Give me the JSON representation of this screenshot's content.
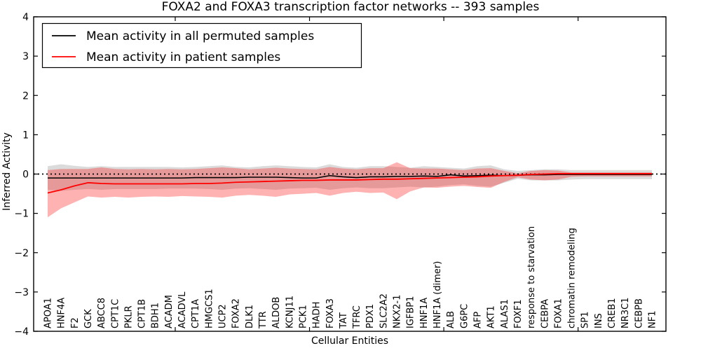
{
  "figure": {
    "title": "FOXA2 and FOXA3 transcription factor networks -- 393 samples",
    "xlabel": "Cellular Entities",
    "ylabel": "Inferred Activity"
  },
  "legend": {
    "items": [
      {
        "label": "Mean activity in all permuted samples",
        "color": "#000000"
      },
      {
        "label": "Mean activity in patient samples",
        "color": "#ff0000"
      }
    ]
  },
  "chart_data": {
    "type": "line",
    "title": "FOXA2 and FOXA3 transcription factor networks -- 393 samples",
    "xlabel": "Cellular Entities",
    "ylabel": "Inferred Activity",
    "ylim": [
      -4,
      4
    ],
    "ytick_values": [
      4,
      3,
      2,
      1,
      0,
      -1,
      -2,
      -3,
      -4
    ],
    "ytick_labels": [
      "4",
      "3",
      "2",
      "1",
      "0",
      "−1",
      "−2",
      "−3",
      "−4"
    ],
    "xtick_category_indices": [
      9,
      19,
      29,
      39
    ],
    "grid": false,
    "legend_position": "upper left",
    "zero_reference_line": 0,
    "categories": [
      "APOA1",
      "HNF4A",
      "F2",
      "GCK",
      "ABCC8",
      "CPT1C",
      "PKLR",
      "CPT1B",
      "BDH1",
      "ACADM",
      "ACADVL",
      "CPT1A",
      "HMGCS1",
      "UCP2",
      "FOXA2",
      "DLK1",
      "TTR",
      "ALDOB",
      "KCNJ11",
      "PCK1",
      "HADH",
      "FOXA3",
      "TAT",
      "TFRC",
      "PDX1",
      "SLC2A2",
      "NKX2-1",
      "IGFBP1",
      "HNF1A",
      "HNF1A (dimer)",
      "ALB",
      "G6PC",
      "AFP",
      "AKT1",
      "ALAS1",
      "FOXF1",
      "response to starvation",
      "CEBPA",
      "FOXA1",
      "chromatin remodeling",
      "SP1",
      "INS",
      "CREB1",
      "NR3C1",
      "CEBPB",
      "NF1"
    ],
    "series": [
      {
        "name": "Mean activity in all permuted samples",
        "color": "#000000",
        "line_width": 1.6,
        "band_color": "#000000",
        "band_opacity": 0.14,
        "values": [
          -0.1,
          -0.1,
          -0.1,
          -0.1,
          -0.1,
          -0.1,
          -0.1,
          -0.1,
          -0.1,
          -0.1,
          -0.1,
          -0.09,
          -0.09,
          -0.09,
          -0.09,
          -0.08,
          -0.08,
          -0.08,
          -0.09,
          -0.1,
          -0.1,
          -0.04,
          -0.07,
          -0.09,
          -0.07,
          -0.07,
          -0.06,
          -0.06,
          -0.05,
          -0.06,
          -0.02,
          -0.05,
          -0.04,
          -0.03,
          -0.04,
          -0.03,
          -0.02,
          -0.02,
          -0.01,
          -0.01,
          -0.01,
          -0.01,
          -0.01,
          -0.01,
          -0.01,
          -0.01
        ],
        "band_upper": [
          0.2,
          0.25,
          0.21,
          0.18,
          0.2,
          0.18,
          0.18,
          0.18,
          0.18,
          0.18,
          0.17,
          0.18,
          0.2,
          0.22,
          0.18,
          0.17,
          0.2,
          0.22,
          0.2,
          0.18,
          0.17,
          0.25,
          0.18,
          0.16,
          0.2,
          0.2,
          0.18,
          0.16,
          0.2,
          0.18,
          0.16,
          0.14,
          0.2,
          0.22,
          0.12,
          0.08,
          0.1,
          0.12,
          0.12,
          0.1,
          0.1,
          0.1,
          0.1,
          0.1,
          0.1,
          0.1
        ],
        "band_lower": [
          -0.4,
          -0.43,
          -0.4,
          -0.38,
          -0.4,
          -0.38,
          -0.38,
          -0.38,
          -0.38,
          -0.37,
          -0.37,
          -0.37,
          -0.38,
          -0.4,
          -0.37,
          -0.36,
          -0.38,
          -0.4,
          -0.37,
          -0.36,
          -0.35,
          -0.4,
          -0.36,
          -0.34,
          -0.36,
          -0.36,
          -0.34,
          -0.32,
          -0.34,
          -0.32,
          -0.28,
          -0.26,
          -0.3,
          -0.32,
          -0.22,
          -0.12,
          -0.16,
          -0.16,
          -0.16,
          -0.14,
          -0.13,
          -0.13,
          -0.13,
          -0.13,
          -0.13,
          -0.13
        ]
      },
      {
        "name": "Mean activity in patient samples",
        "color": "#ff0000",
        "line_width": 1.8,
        "band_color": "#ff0000",
        "band_opacity": 0.3,
        "values": [
          -0.48,
          -0.4,
          -0.3,
          -0.22,
          -0.24,
          -0.25,
          -0.25,
          -0.25,
          -0.25,
          -0.25,
          -0.25,
          -0.24,
          -0.24,
          -0.23,
          -0.21,
          -0.2,
          -0.19,
          -0.18,
          -0.17,
          -0.16,
          -0.16,
          -0.15,
          -0.15,
          -0.15,
          -0.14,
          -0.13,
          -0.13,
          -0.12,
          -0.11,
          -0.1,
          -0.09,
          -0.08,
          -0.07,
          -0.05,
          -0.04,
          -0.03,
          -0.01,
          0.0,
          0.01,
          0.01,
          0.01,
          0.01,
          0.01,
          0.01,
          0.01,
          0.01
        ],
        "band_upper": [
          0.1,
          0.13,
          0.13,
          0.13,
          0.17,
          0.13,
          0.12,
          0.13,
          0.12,
          0.13,
          0.12,
          0.13,
          0.15,
          0.17,
          0.15,
          0.12,
          0.14,
          0.16,
          0.14,
          0.13,
          0.12,
          0.18,
          0.14,
          0.12,
          0.15,
          0.15,
          0.3,
          0.15,
          0.14,
          0.14,
          0.12,
          0.1,
          0.14,
          0.15,
          0.08,
          0.02,
          0.08,
          0.1,
          0.09,
          0.04,
          0.04,
          0.04,
          0.04,
          0.04,
          0.04,
          0.04
        ],
        "band_lower": [
          -1.1,
          -0.87,
          -0.72,
          -0.57,
          -0.6,
          -0.58,
          -0.6,
          -0.58,
          -0.57,
          -0.58,
          -0.56,
          -0.57,
          -0.58,
          -0.6,
          -0.55,
          -0.53,
          -0.55,
          -0.58,
          -0.52,
          -0.5,
          -0.48,
          -0.55,
          -0.48,
          -0.45,
          -0.48,
          -0.47,
          -0.64,
          -0.44,
          -0.34,
          -0.35,
          -0.32,
          -0.3,
          -0.33,
          -0.35,
          -0.2,
          -0.08,
          -0.14,
          -0.16,
          -0.14,
          -0.07,
          -0.06,
          -0.06,
          -0.06,
          -0.06,
          -0.06,
          -0.06
        ]
      }
    ]
  }
}
